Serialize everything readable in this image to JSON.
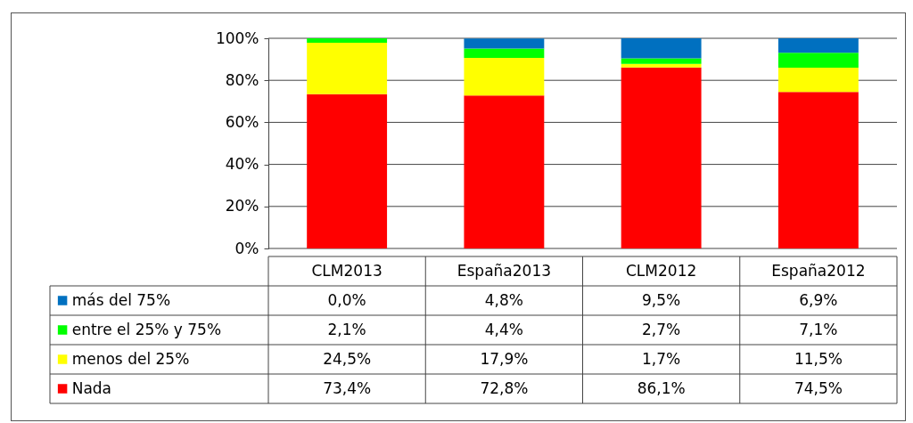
{
  "chart_data": {
    "type": "bar",
    "stacked": true,
    "categories": [
      "CLM2013",
      "España2013",
      "CLM2012",
      "España2012"
    ],
    "series": [
      {
        "name": "Nada",
        "color": "#ff0000",
        "values": [
          73.4,
          72.8,
          86.1,
          74.5
        ],
        "value_labels": [
          "73,4%",
          "72,8%",
          "86,1%",
          "74,5%"
        ]
      },
      {
        "name": "menos del 25%",
        "color": "#ffff00",
        "values": [
          24.5,
          17.9,
          1.7,
          11.5
        ],
        "value_labels": [
          "24,5%",
          "17,9%",
          "1,7%",
          "11,5%"
        ]
      },
      {
        "name": "entre el 25% y 75%",
        "color": "#00ff00",
        "values": [
          2.1,
          4.4,
          2.7,
          7.1
        ],
        "value_labels": [
          "2,1%",
          "4,4%",
          "2,7%",
          "7,1%"
        ]
      },
      {
        "name": "más del 75%",
        "color": "#0070c0",
        "values": [
          0.0,
          4.8,
          9.5,
          6.9
        ],
        "value_labels": [
          "0,0%",
          "4,8%",
          "9,5%",
          "6,9%"
        ]
      }
    ],
    "ylim": [
      0,
      100
    ],
    "yticks": [
      {
        "value": 0,
        "label": "0%"
      },
      {
        "value": 20,
        "label": "20%"
      },
      {
        "value": 40,
        "label": "40%"
      },
      {
        "value": 60,
        "label": "60%"
      },
      {
        "value": 80,
        "label": "80%"
      },
      {
        "value": 100,
        "label": "100%"
      }
    ],
    "grid": "y",
    "legend": "bottom"
  }
}
